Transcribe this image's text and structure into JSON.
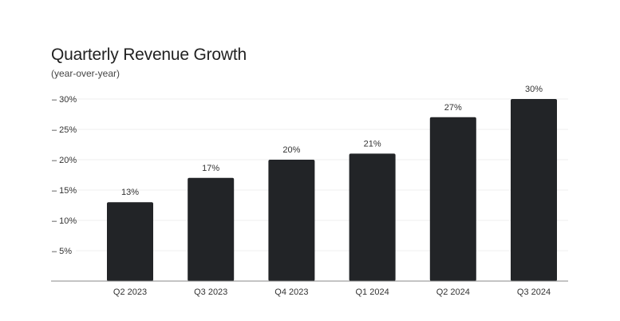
{
  "chart_data": {
    "type": "bar",
    "title": "Quarterly Revenue Growth",
    "subtitle": "(year-over-year)",
    "categories": [
      "Q2 2023",
      "Q3 2023",
      "Q4 2023",
      "Q1 2024",
      "Q2 2024",
      "Q3 2024"
    ],
    "values": [
      13,
      17,
      20,
      21,
      27,
      30
    ],
    "data_labels": [
      "13%",
      "17%",
      "20%",
      "21%",
      "27%",
      "30%"
    ],
    "ylim": [
      0,
      30
    ],
    "y_ticks": [
      5,
      10,
      15,
      20,
      25,
      30
    ],
    "y_tick_labels": [
      "5%",
      "10%",
      "15%",
      "20%",
      "25%",
      "30%"
    ],
    "xlabel": "",
    "ylabel": "",
    "grid": true,
    "legend": "none",
    "colors": {
      "bar": "#222427",
      "grid": "#efefef",
      "axis": "#888888"
    }
  }
}
